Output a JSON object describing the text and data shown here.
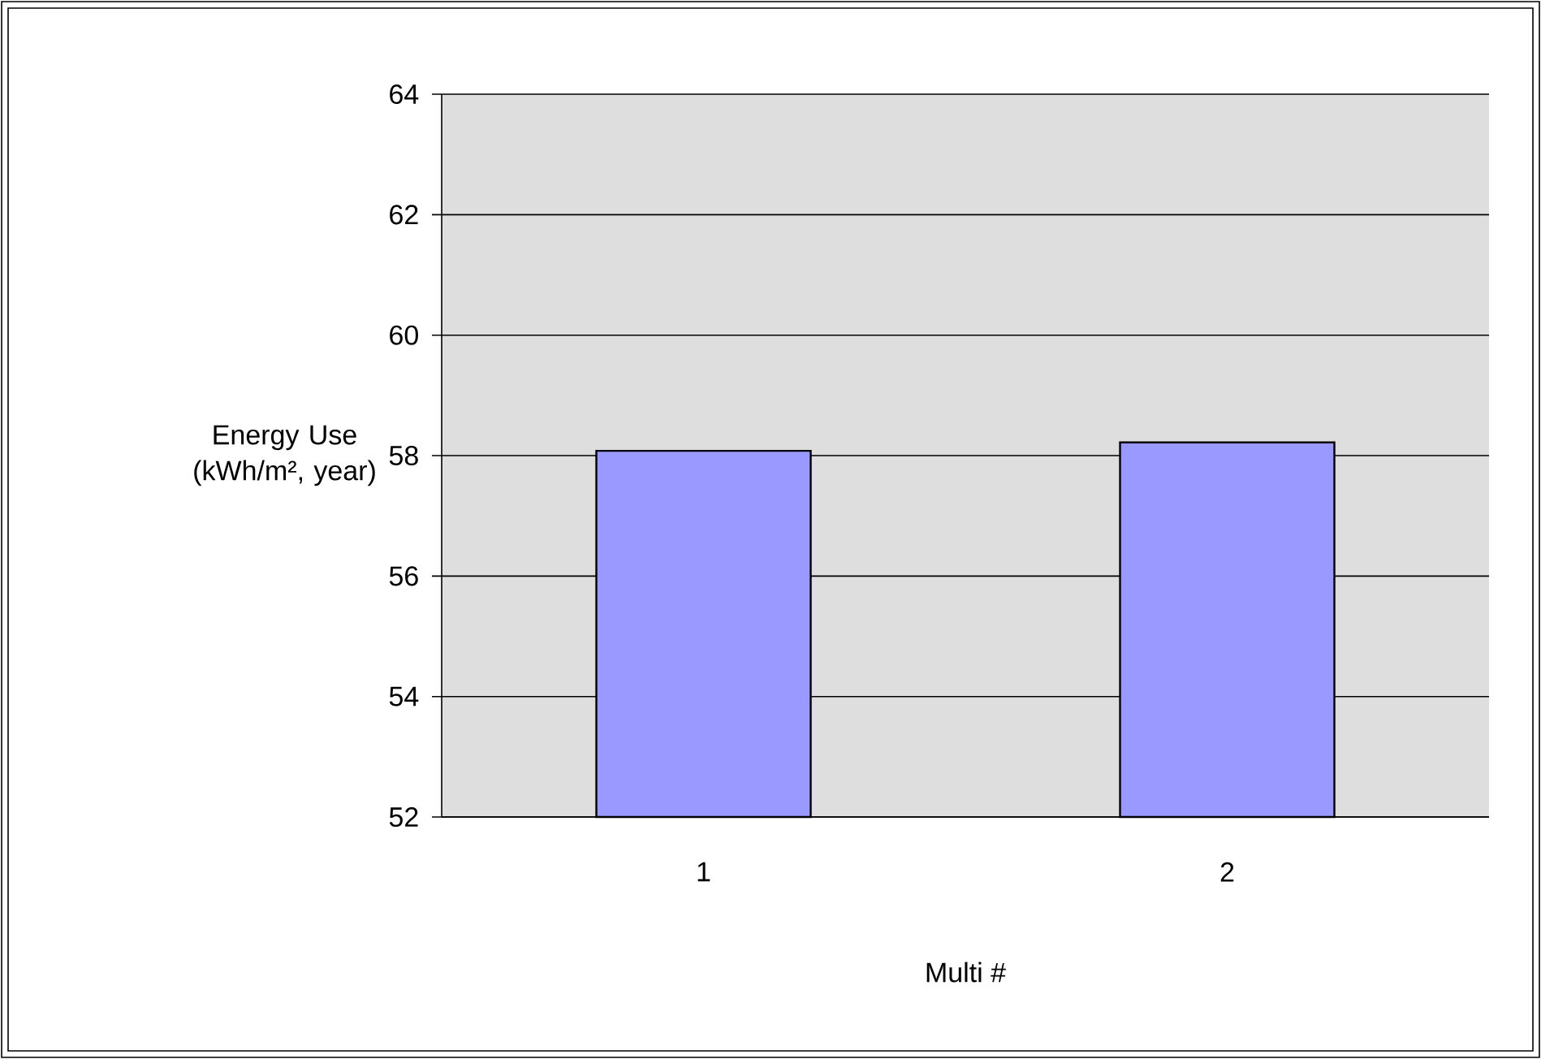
{
  "chart_data": {
    "type": "bar",
    "xlabel": "Multi #",
    "ylabel": "Energy Use (kWh/m², year)",
    "categories": [
      "1",
      "2"
    ],
    "series": [
      {
        "color": "#9999ff",
        "values": [
          58.08,
          58.22
        ]
      }
    ],
    "ylim": [
      52,
      64
    ],
    "yticks": [
      52,
      54,
      56,
      58,
      60,
      62,
      64
    ],
    "grid": "y"
  }
}
